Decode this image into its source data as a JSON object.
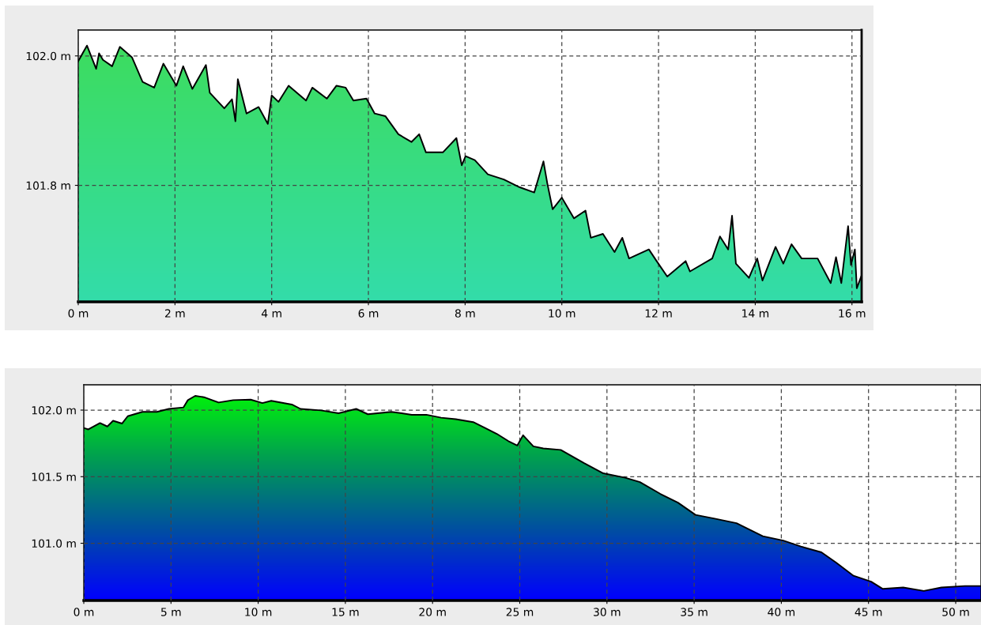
{
  "chart_data": [
    {
      "type": "area",
      "x": [
        0,
        0.18,
        0.37,
        0.43,
        0.51,
        0.7,
        0.86,
        1.11,
        1.33,
        1.57,
        1.76,
        2.03,
        2.17,
        2.36,
        2.64,
        2.72,
        3.02,
        3.18,
        3.25,
        3.3,
        3.48,
        3.73,
        3.92,
        4.0,
        4.14,
        4.35,
        4.71,
        4.84,
        5.14,
        5.34,
        5.53,
        5.69,
        5.96,
        6.13,
        6.35,
        6.62,
        6.89,
        7.05,
        7.19,
        7.54,
        7.82,
        7.93,
        8.01,
        8.2,
        8.47,
        8.8,
        9.13,
        9.43,
        9.62,
        9.7,
        9.81,
        10.0,
        10.25,
        10.49,
        10.6,
        10.85,
        11.09,
        11.25,
        11.39,
        11.8,
        11.96,
        12.18,
        12.56,
        12.65,
        13.11,
        13.27,
        13.44,
        13.52,
        13.6,
        13.87,
        14.04,
        14.15,
        14.42,
        14.58,
        14.75,
        14.96,
        15.29,
        15.56,
        15.67,
        15.78,
        15.92,
        15.98,
        16.06,
        16.1,
        16.19
      ],
      "series": [
        {
          "color": "#000000",
          "values": [
            101.992,
            102.016,
            101.98,
            102.004,
            101.994,
            101.984,
            102.014,
            101.998,
            101.96,
            101.951,
            101.988,
            101.954,
            101.984,
            101.949,
            101.986,
            101.943,
            101.919,
            101.933,
            101.899,
            101.964,
            101.911,
            101.921,
            101.895,
            101.939,
            101.929,
            101.954,
            101.931,
            101.951,
            101.934,
            101.954,
            101.951,
            101.931,
            101.934,
            101.911,
            101.907,
            101.879,
            101.867,
            101.879,
            101.851,
            101.851,
            101.873,
            101.831,
            101.845,
            101.839,
            101.817,
            101.809,
            101.797,
            101.789,
            101.837,
            101.803,
            101.763,
            101.781,
            101.749,
            101.761,
            101.719,
            101.725,
            101.697,
            101.719,
            101.687,
            101.701,
            101.683,
            101.659,
            101.683,
            101.667,
            101.687,
            101.721,
            101.701,
            101.753,
            101.679,
            101.657,
            101.687,
            101.653,
            101.705,
            101.679,
            101.709,
            101.687,
            101.687,
            101.649,
            101.689,
            101.649,
            101.737,
            101.677,
            101.701,
            101.641,
            101.659
          ]
        }
      ],
      "xlim": [
        0,
        16.2
      ],
      "ylim": [
        101.62,
        102.04
      ],
      "xticks": [
        {
          "value": 0,
          "label": "0 m"
        },
        {
          "value": 2,
          "label": "2 m"
        },
        {
          "value": 4,
          "label": "4 m"
        },
        {
          "value": 6,
          "label": "6 m"
        },
        {
          "value": 8,
          "label": "8 m"
        },
        {
          "value": 10,
          "label": "10 m"
        },
        {
          "value": 12,
          "label": "12 m"
        },
        {
          "value": 14,
          "label": "14 m"
        },
        {
          "value": 16,
          "label": "16 m"
        }
      ],
      "yticks": [
        {
          "value": 101.8,
          "label": "101.8 m"
        },
        {
          "value": 102.0,
          "label": "102.0 m"
        }
      ],
      "grid": true,
      "line_style": "solid"
    },
    {
      "type": "area",
      "x": [
        0,
        0.26,
        0.93,
        1.35,
        1.68,
        2.19,
        2.52,
        3.36,
        4.2,
        4.87,
        5.71,
        5.97,
        6.39,
        6.89,
        7.73,
        8.57,
        9.57,
        10.24,
        10.75,
        11.93,
        12.43,
        13.6,
        14.61,
        15.62,
        16.29,
        17.63,
        18.81,
        19.65,
        20.49,
        21.33,
        22.33,
        23.01,
        23.68,
        24.35,
        24.86,
        25.19,
        25.78,
        26.35,
        27.35,
        28.69,
        29.79,
        31.05,
        31.89,
        33.06,
        34.07,
        35.08,
        36.18,
        37.43,
        38.94,
        40.11,
        41.12,
        42.3,
        43.14,
        44.14,
        45.15,
        45.82,
        46.99,
        48.17,
        49.18,
        50.53,
        51.45
      ],
      "series": [
        {
          "color": "#000000",
          "values": [
            101.866,
            101.855,
            101.903,
            101.877,
            101.92,
            101.899,
            101.954,
            101.987,
            101.987,
            102.009,
            102.02,
            102.075,
            102.107,
            102.097,
            102.057,
            102.075,
            102.079,
            102.053,
            102.07,
            102.042,
            102.009,
            101.998,
            101.976,
            102.009,
            101.969,
            101.987,
            101.965,
            101.965,
            101.943,
            101.932,
            101.91,
            101.866,
            101.822,
            101.767,
            101.734,
            101.811,
            101.728,
            101.712,
            101.701,
            101.602,
            101.525,
            101.492,
            101.459,
            101.371,
            101.305,
            101.213,
            101.185,
            101.151,
            101.053,
            101.02,
            100.976,
            100.932,
            100.855,
            100.756,
            100.712,
            100.657,
            100.668,
            100.642,
            100.668,
            100.679,
            100.679
          ]
        }
      ],
      "xlim": [
        0,
        51.45
      ],
      "ylim": [
        100.57,
        102.19
      ],
      "xticks": [
        {
          "value": 0,
          "label": "0 m"
        },
        {
          "value": 5,
          "label": "5 m"
        },
        {
          "value": 10,
          "label": "10 m"
        },
        {
          "value": 15,
          "label": "15 m"
        },
        {
          "value": 20,
          "label": "20 m"
        },
        {
          "value": 25,
          "label": "25 m"
        },
        {
          "value": 30,
          "label": "30 m"
        },
        {
          "value": 35,
          "label": "35 m"
        },
        {
          "value": 40,
          "label": "40 m"
        },
        {
          "value": 45,
          "label": "45 m"
        },
        {
          "value": 50,
          "label": "50 m"
        }
      ],
      "yticks": [
        {
          "value": 101.0,
          "label": "101.0 m"
        },
        {
          "value": 101.5,
          "label": "101.5 m"
        },
        {
          "value": 102.0,
          "label": "102.0 m"
        }
      ],
      "grid": true,
      "line_style": "solid"
    }
  ]
}
